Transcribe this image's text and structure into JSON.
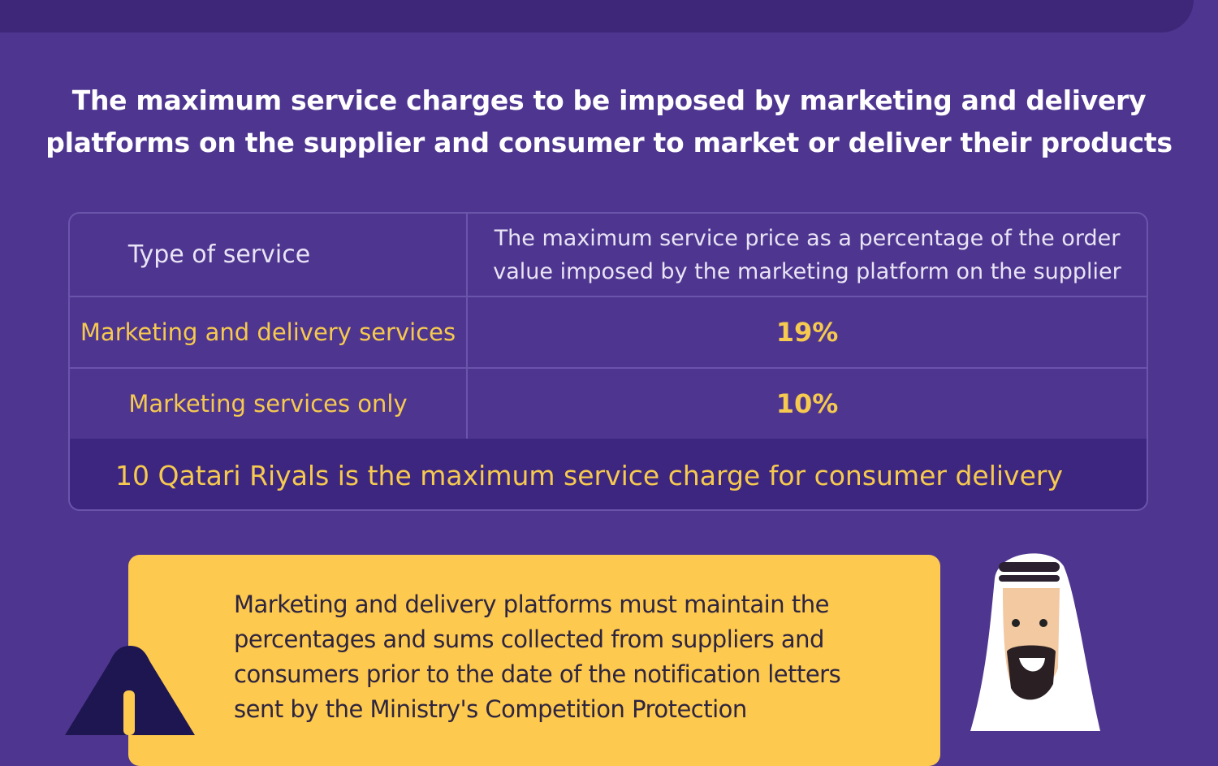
{
  "title": "The maximum service charges to be imposed by marketing and delivery platforms on the supplier and consumer to market or deliver their products",
  "table": {
    "headers": [
      "Type of service",
      "The maximum service price as a percentage of the order value imposed by the marketing platform on the supplier"
    ],
    "rows": [
      {
        "service": "Marketing and delivery services",
        "max_percentage": "19%"
      },
      {
        "service": "Marketing services only",
        "max_percentage": "10%"
      }
    ],
    "footer": "10 Qatari Riyals is the maximum service charge for consumer delivery"
  },
  "note": "Marketing and delivery platforms must maintain the percentages and sums collected from suppliers and consumers prior to the date of the notification letters sent by the Ministry's Competition Protection",
  "colors": {
    "background": "#4e3690",
    "accent": "#f6c94f",
    "note_background": "#fdc94e"
  }
}
